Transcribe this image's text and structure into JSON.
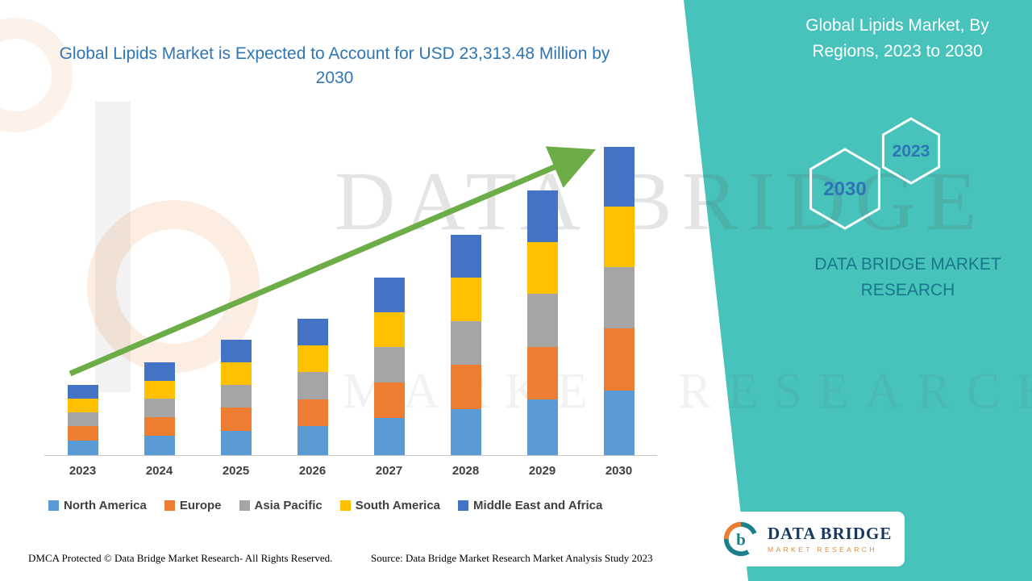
{
  "colors": {
    "teal_panel": "#48C3BB",
    "title_blue": "#2E75B6",
    "trend_arrow_green": "#6CAD47",
    "brand_teal": "#17788C",
    "logo_navy": "#17375D",
    "logo_orange": "#ED7D31"
  },
  "header": {
    "left_title": "Global Lipids Market is Expected to Account for USD 23,313.48 Million by 2030",
    "right_title": "Global Lipids Market, By Regions, 2023 to 2030"
  },
  "side_panel": {
    "hexagon_front": "2030",
    "hexagon_back": "2023",
    "brand_text": "DATA BRIDGE MARKET RESEARCH"
  },
  "watermark": {
    "line1": "DATA BRIDGE",
    "line2": "MARKET RESEARCH"
  },
  "logo": {
    "mark": "b",
    "name": "DATA BRIDGE",
    "tagline": "MARKET RESEARCH"
  },
  "footer": {
    "dmca": "DMCA Protected © Data Bridge Market Research- All Rights Reserved.",
    "source": "Source: Data Bridge Market Research Market Analysis Study 2023"
  },
  "chart_data": {
    "type": "bar",
    "subtype": "stacked-vertical",
    "title": "Global Lipids Market is Expected to Account for USD 23,313.48 Million by 2030",
    "unit": "USD Million",
    "categories": [
      "2023",
      "2024",
      "2025",
      "2026",
      "2027",
      "2028",
      "2029",
      "2030"
    ],
    "series": [
      {
        "name": "North America",
        "color": "#5B9BD5",
        "values": [
          1120,
          1480,
          1830,
          2170,
          2820,
          3500,
          4200,
          4900
        ]
      },
      {
        "name": "Europe",
        "color": "#ED7D31",
        "values": [
          1060,
          1400,
          1750,
          2060,
          2690,
          3330,
          4000,
          4660
        ]
      },
      {
        "name": "Asia Pacific",
        "color": "#A5A5A5",
        "values": [
          1060,
          1400,
          1750,
          2060,
          2690,
          3330,
          4000,
          4660
        ]
      },
      {
        "name": "South America",
        "color": "#FFC000",
        "values": [
          1040,
          1370,
          1700,
          2010,
          2620,
          3250,
          3900,
          4550
        ]
      },
      {
        "name": "Middle East and Africa",
        "color": "#4472C4",
        "values": [
          1030,
          1368,
          1697,
          2014,
          2607,
          3251,
          3918,
          4543.48
        ]
      }
    ],
    "totals_usd_million": [
      5310,
      7018,
      8727,
      10314,
      13427,
      16661,
      20018,
      23313.48
    ],
    "ylim": [
      0,
      23313.48
    ],
    "grid": false,
    "axis_value_labels_shown": false,
    "legend_position": "bottom",
    "trend_arrow": "upward-green"
  }
}
